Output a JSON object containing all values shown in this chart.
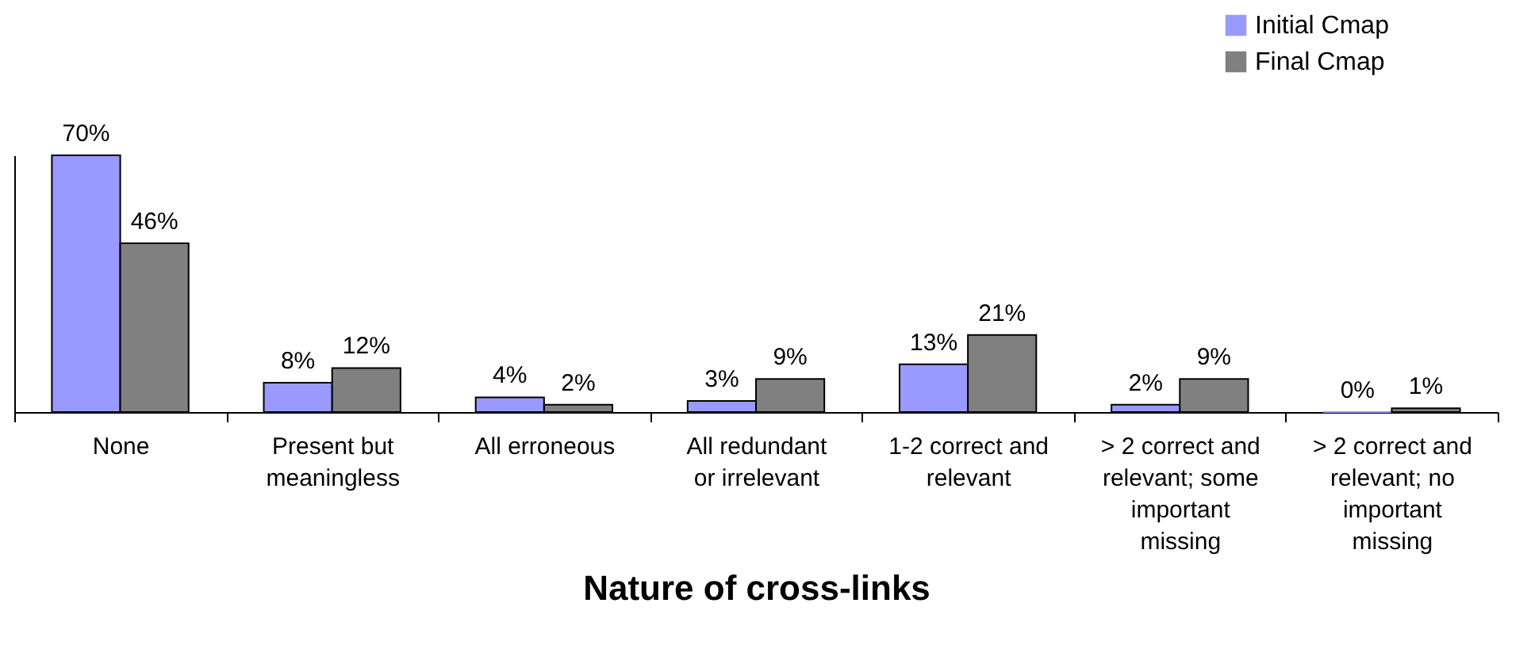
{
  "chart_data": {
    "type": "bar",
    "xlabel": "Nature of cross-links",
    "categories": [
      "None",
      "Present but meaningless",
      "All erroneous",
      "All redundant or irrelevant",
      "1-2 correct and relevant",
      "> 2 correct and relevant; some important missing",
      "> 2 correct and relevant; no important missing"
    ],
    "series": [
      {
        "name": "Initial Cmap",
        "color": "#9999ff",
        "values": [
          70,
          8,
          4,
          3,
          13,
          2,
          0
        ],
        "value_labels": [
          "70%",
          "8%",
          "4%",
          "3%",
          "13%",
          "2%",
          "0%"
        ]
      },
      {
        "name": "Final Cmap",
        "color": "#808080",
        "values": [
          46,
          12,
          2,
          9,
          21,
          9,
          1
        ],
        "value_labels": [
          "46%",
          "12%",
          "2%",
          "9%",
          "21%",
          "9%",
          "1%"
        ]
      }
    ],
    "legend": "top right"
  }
}
